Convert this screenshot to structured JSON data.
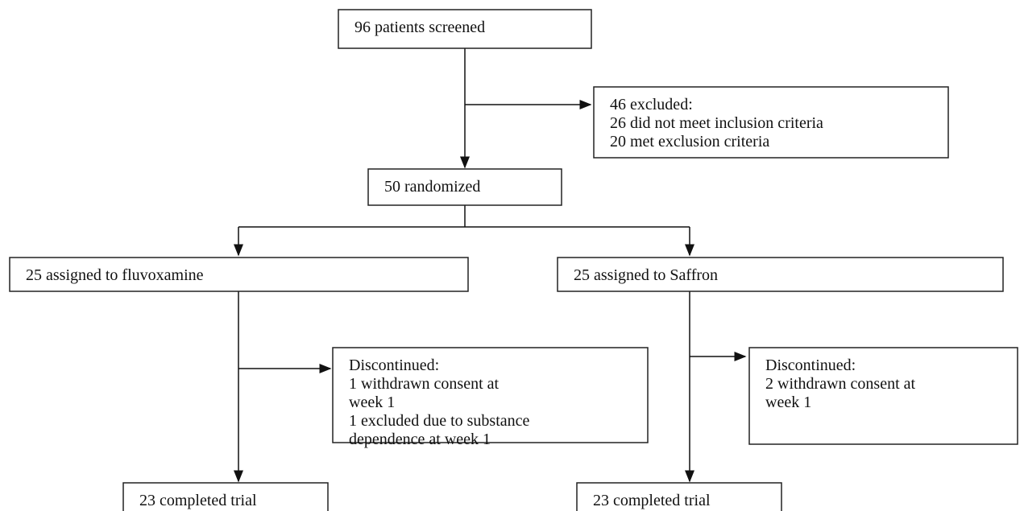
{
  "nodes": [
    {
      "id": "screened",
      "lines": [
        "96 patients screened"
      ]
    },
    {
      "id": "excluded",
      "lines": [
        "46 excluded:",
        "26 did not meet inclusion criteria",
        "20 met exclusion criteria"
      ]
    },
    {
      "id": "randomized",
      "lines": [
        "50 randomized"
      ]
    },
    {
      "id": "fluvoxamine",
      "lines": [
        "25 assigned to fluvoxamine"
      ]
    },
    {
      "id": "saffron",
      "lines": [
        "25 assigned to Saffron"
      ]
    },
    {
      "id": "disc1",
      "lines": [
        "Discontinued:",
        "1 withdrawn consent at",
        "week 1",
        "1 excluded due to substance",
        "dependence at week 1"
      ]
    },
    {
      "id": "disc2",
      "lines": [
        "Discontinued:",
        "2 withdrawn consent at",
        "week 1"
      ]
    },
    {
      "id": "done1",
      "lines": [
        "23 completed trial"
      ]
    },
    {
      "id": "done2",
      "lines": [
        "23 completed trial"
      ]
    }
  ]
}
